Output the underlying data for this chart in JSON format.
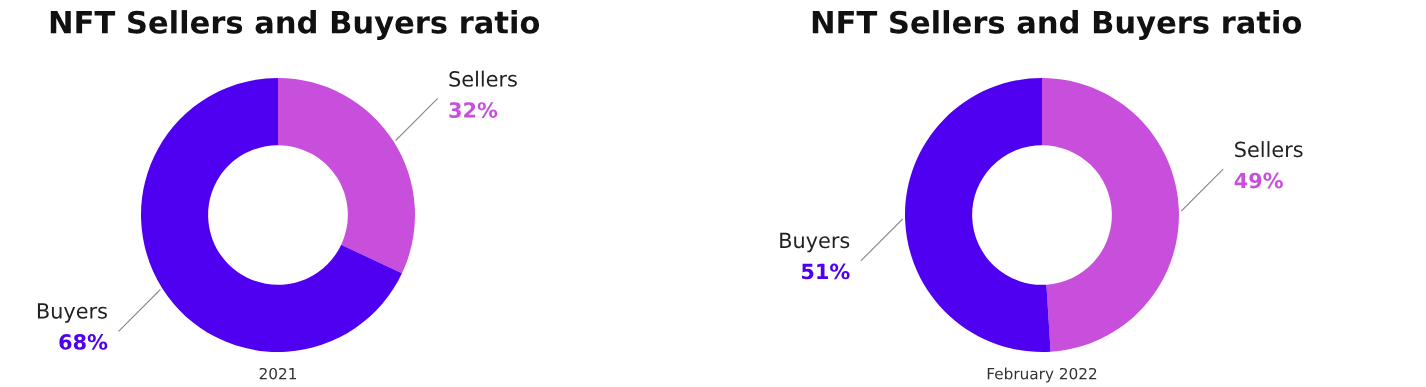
{
  "chart_data": [
    {
      "type": "donut",
      "title": "NFT Sellers and Buyers ratio",
      "categories": [
        "Sellers",
        "Buyers"
      ],
      "values": [
        32,
        68
      ],
      "value_labels": [
        "32%",
        "68%"
      ],
      "colors": [
        "#c84fdc",
        "#5000f0"
      ],
      "annotations": [
        "2021"
      ],
      "legend": false
    },
    {
      "type": "donut",
      "title": "NFT Sellers and Buyers ratio",
      "categories": [
        "Sellers",
        "Buyers"
      ],
      "values": [
        49,
        51
      ],
      "value_labels": [
        "49%",
        "51%"
      ],
      "colors": [
        "#c84fdc",
        "#5000f0"
      ],
      "annotations": [
        "February 2022"
      ],
      "legend": false
    }
  ]
}
